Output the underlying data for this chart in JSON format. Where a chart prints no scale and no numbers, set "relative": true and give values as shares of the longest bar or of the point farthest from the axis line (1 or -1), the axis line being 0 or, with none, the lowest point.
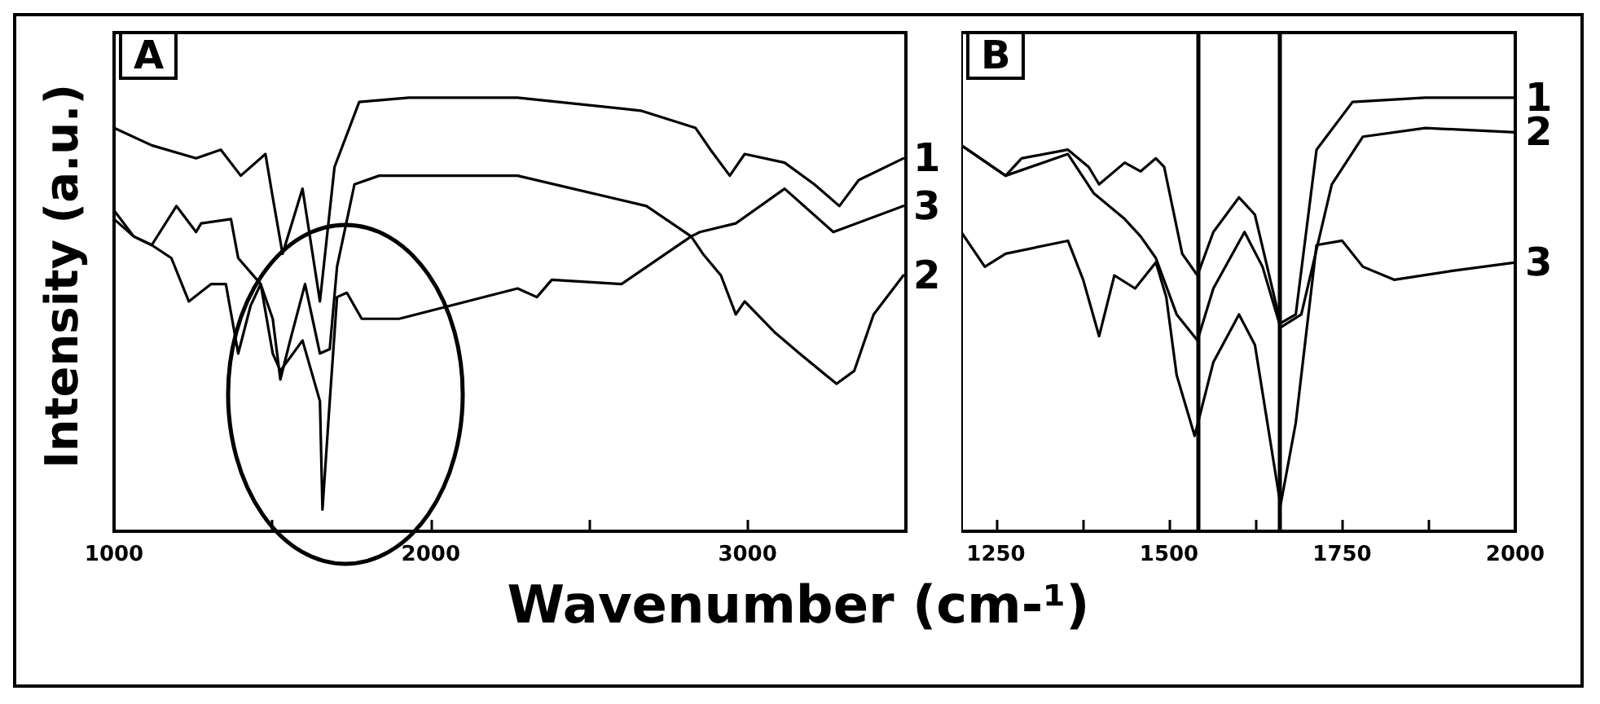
{
  "chart_data": [
    {
      "type": "line",
      "title": "A",
      "ylabel": "Intensity (a.u.)",
      "xlabel": "Wavenumber (cm-¹)",
      "relative": true,
      "legend": false,
      "grid": false,
      "marker": "none",
      "line_style": "solid",
      "xlim": [
        1000,
        3500
      ],
      "xticks": [
        1000,
        {
          "value": 1500,
          "label": null
        },
        2000,
        {
          "value": 2500,
          "label": null
        },
        3000
      ],
      "series": [
        {
          "name": "1",
          "color": "#000000",
          "x": [
            1000,
            1119,
            1259,
            1337,
            1400,
            1478,
            1501,
            1532,
            1595,
            1650,
            1696,
            1774,
            1931,
            2274,
            2663,
            2836,
            2883,
            2944,
            2991,
            3117,
            3211,
            3290,
            3351,
            3492
          ],
          "values": [
            0.93,
            0.89,
            0.86,
            0.88,
            0.82,
            0.87,
            0.77,
            0.64,
            0.79,
            0.53,
            0.84,
            0.99,
            1.0,
            1.0,
            0.97,
            0.93,
            0.88,
            0.82,
            0.87,
            0.85,
            0.8,
            0.75,
            0.81,
            0.86
          ]
        },
        {
          "name": "2",
          "color": "#000000",
          "x": [
            1000,
            1062,
            1119,
            1197,
            1259,
            1275,
            1369,
            1392,
            1463,
            1501,
            1525,
            1556,
            1603,
            1650,
            1681,
            1704,
            1759,
            1837,
            2274,
            2681,
            2822,
            2859,
            2916,
            2963,
            2991,
            3084,
            3164,
            3281,
            3337,
            3398,
            3492
          ],
          "values": [
            0.72,
            0.68,
            0.66,
            0.75,
            0.69,
            0.71,
            0.72,
            0.63,
            0.57,
            0.49,
            0.35,
            0.44,
            0.57,
            0.41,
            0.42,
            0.61,
            0.8,
            0.82,
            0.82,
            0.75,
            0.68,
            0.64,
            0.59,
            0.5,
            0.53,
            0.46,
            0.41,
            0.34,
            0.37,
            0.5,
            0.59
          ]
        },
        {
          "name": "3",
          "color": "#000000",
          "x": [
            1000,
            1062,
            1119,
            1181,
            1236,
            1306,
            1353,
            1392,
            1431,
            1463,
            1501,
            1525,
            1595,
            1650,
            1658,
            1681,
            1704,
            1735,
            1782,
            1900,
            2274,
            2335,
            2382,
            2602,
            2822,
            2850,
            2963,
            3117,
            3271,
            3492
          ],
          "values": [
            0.74,
            0.68,
            0.66,
            0.63,
            0.53,
            0.57,
            0.57,
            0.41,
            0.52,
            0.57,
            0.41,
            0.37,
            0.44,
            0.3,
            0.05,
            0.3,
            0.54,
            0.55,
            0.49,
            0.49,
            0.56,
            0.54,
            0.58,
            0.57,
            0.68,
            0.69,
            0.71,
            0.79,
            0.69,
            0.75
          ]
        }
      ]
    },
    {
      "type": "line",
      "title": "B",
      "relative": true,
      "legend": false,
      "grid": false,
      "marker": "none",
      "line_style": "solid",
      "xlim": [
        1200,
        2000
      ],
      "xticks": [
        1250,
        {
          "value": 1375,
          "label": null
        },
        1500,
        {
          "value": 1625,
          "label": null
        },
        1750,
        {
          "value": 1875,
          "label": null
        },
        2000
      ],
      "ref_lines": [
        {
          "axis": "x",
          "value": 1541,
          "color": "#000000"
        },
        {
          "axis": "x",
          "value": 1660,
          "color": "#000000"
        }
      ],
      "series": [
        {
          "name": "1",
          "color": "#000000",
          "x": [
            1200,
            1264,
            1287,
            1354,
            1384,
            1399,
            1436,
            1459,
            1481,
            1493,
            1519,
            1541,
            1564,
            1601,
            1624,
            1661,
            1683,
            1713,
            1765,
            1870,
            2000
          ],
          "values": [
            0.89,
            0.82,
            0.86,
            0.88,
            0.84,
            0.8,
            0.85,
            0.83,
            0.86,
            0.84,
            0.64,
            0.59,
            0.69,
            0.77,
            0.73,
            0.48,
            0.5,
            0.88,
            0.99,
            1.0,
            1.0
          ]
        },
        {
          "name": "2",
          "color": "#000000",
          "x": [
            1200,
            1264,
            1354,
            1391,
            1436,
            1459,
            1481,
            1511,
            1541,
            1564,
            1609,
            1635,
            1661,
            1691,
            1735,
            1780,
            1870,
            2000
          ],
          "values": [
            0.89,
            0.82,
            0.87,
            0.78,
            0.72,
            0.68,
            0.63,
            0.5,
            0.44,
            0.56,
            0.69,
            0.61,
            0.47,
            0.5,
            0.8,
            0.91,
            0.93,
            0.92
          ]
        },
        {
          "name": "3",
          "color": "#000000",
          "x": [
            1200,
            1234,
            1264,
            1354,
            1376,
            1399,
            1421,
            1451,
            1481,
            1496,
            1511,
            1537,
            1564,
            1601,
            1624,
            1661,
            1683,
            1713,
            1750,
            1780,
            1825,
            1907,
            2000
          ],
          "values": [
            0.69,
            0.61,
            0.64,
            0.67,
            0.58,
            0.45,
            0.59,
            0.56,
            0.62,
            0.54,
            0.36,
            0.22,
            0.39,
            0.5,
            0.43,
            0.06,
            0.25,
            0.66,
            0.67,
            0.61,
            0.58,
            0.6,
            0.62
          ]
        }
      ]
    }
  ]
}
